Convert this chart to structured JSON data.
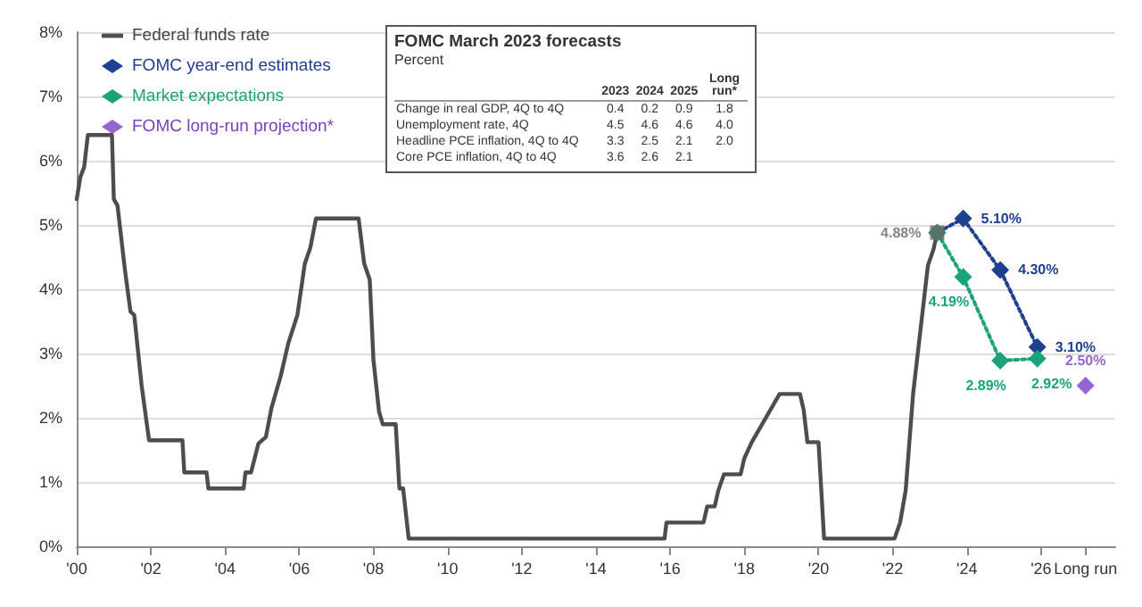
{
  "chart_data": [
    {
      "type": "line",
      "grid": "y",
      "legend": "top left",
      "xlim": [
        2000,
        2028
      ],
      "ylim": [
        0,
        8
      ],
      "xticks": [
        {
          "value": 2000,
          "label": "'00"
        },
        {
          "value": 2002,
          "label": "'02"
        },
        {
          "value": 2004,
          "label": "'04"
        },
        {
          "value": 2006,
          "label": "'06"
        },
        {
          "value": 2008,
          "label": "'08"
        },
        {
          "value": 2010,
          "label": "'10"
        },
        {
          "value": 2012,
          "label": "'12"
        },
        {
          "value": 2014,
          "label": "'14"
        },
        {
          "value": 2016,
          "label": "'16"
        },
        {
          "value": 2018,
          "label": "'18"
        },
        {
          "value": 2020,
          "label": "'20"
        },
        {
          "value": 2022,
          "label": "'22"
        },
        {
          "value": 2024,
          "label": "'24"
        },
        {
          "value": 2026,
          "label": "'26"
        },
        {
          "value": 2027.2,
          "label": "Long run"
        }
      ],
      "yticks": [
        {
          "value": 0,
          "label": "0%"
        },
        {
          "value": 1,
          "label": "1%"
        },
        {
          "value": 2,
          "label": "2%"
        },
        {
          "value": 3,
          "label": "3%"
        },
        {
          "value": 4,
          "label": "4%"
        },
        {
          "value": 5,
          "label": "5%"
        },
        {
          "value": 6,
          "label": "6%"
        },
        {
          "value": 7,
          "label": "7%"
        },
        {
          "value": 8,
          "label": "8%"
        }
      ],
      "series": [
        {
          "name": "Federal funds rate",
          "type": "line",
          "color": "#4d4d4d",
          "marker": "none",
          "line_style": "solid",
          "x": [
            2000,
            2000.1,
            2000.2,
            2000.3,
            2000.95,
            2001,
            2001.1,
            2001.3,
            2001.45,
            2001.55,
            2001.75,
            2001.95,
            2002.85,
            2002.9,
            2003.5,
            2003.55,
            2004.5,
            2004.55,
            2004.7,
            2004.9,
            2005.1,
            2005.25,
            2005.5,
            2005.7,
            2005.95,
            2006.15,
            2006.3,
            2006.45,
            2007.6,
            2007.75,
            2007.9,
            2008,
            2008.15,
            2008.25,
            2008.6,
            2008.7,
            2008.8,
            2008.95,
            2015.85,
            2015.9,
            2016.9,
            2017,
            2017.2,
            2017.3,
            2017.45,
            2017.9,
            2018,
            2018.2,
            2018.45,
            2018.7,
            2018.95,
            2019.5,
            2019.6,
            2019.7,
            2020,
            2020.15,
            2022.05,
            2022.2,
            2022.35,
            2022.45,
            2022.55,
            2022.7,
            2022.85,
            2022.95,
            2023.1,
            2023.2
          ],
          "values": [
            5.4,
            5.75,
            5.9,
            6.4,
            6.4,
            5.4,
            5.3,
            4.3,
            3.65,
            3.6,
            2.5,
            1.65,
            1.65,
            1.15,
            1.15,
            0.9,
            0.9,
            1.15,
            1.15,
            1.6,
            1.7,
            2.15,
            2.65,
            3.15,
            3.6,
            4.4,
            4.65,
            5.1,
            5.1,
            4.4,
            4.15,
            2.9,
            2.1,
            1.9,
            1.9,
            0.9,
            0.9,
            0.12,
            0.12,
            0.37,
            0.37,
            0.62,
            0.62,
            0.87,
            1.12,
            1.12,
            1.37,
            1.62,
            1.87,
            2.12,
            2.37,
            2.37,
            2.12,
            1.62,
            1.62,
            0.12,
            0.12,
            0.37,
            0.87,
            1.62,
            2.37,
            3.12,
            3.87,
            4.37,
            4.62,
            4.88
          ]
        },
        {
          "type": "scatter",
          "color": "#666666",
          "marker": "square",
          "x": [
            2023.2
          ],
          "values": [
            4.88
          ],
          "value_labels": [
            "4.88%"
          ]
        },
        {
          "name": "FOMC year-end estimates",
          "type": "line",
          "color": "#1f3f8f",
          "marker": "diamond",
          "line_style": "dotted",
          "x": [
            2023.2,
            2023.9,
            2024.9,
            2025.9
          ],
          "values": [
            4.88,
            5.1,
            4.3,
            3.1
          ],
          "value_labels": [
            null,
            "5.10%",
            "4.30%",
            "3.10%"
          ]
        },
        {
          "name": "Market expectations",
          "type": "line",
          "color": "#1aa37a",
          "marker": "diamond",
          "line_style": "dotted",
          "x": [
            2023.2,
            2023.9,
            2024.9,
            2025.9
          ],
          "values": [
            4.88,
            4.19,
            2.89,
            2.92
          ],
          "value_labels": [
            null,
            "4.19%",
            "2.89%",
            "2.92%"
          ]
        },
        {
          "name": "FOMC long-run projection*",
          "type": "scatter",
          "color": "#7b3fc4",
          "marker": "diamond",
          "x": [
            2027.2
          ],
          "values": [
            2.5
          ],
          "value_labels": [
            "2.50%"
          ]
        }
      ]
    },
    {
      "type": "other",
      "title": "FOMC March 2023 forecasts",
      "subtitle": "Percent",
      "categories": [
        "2023",
        "2024",
        "2025",
        "Long run*"
      ],
      "y_categories": [
        "Change in real GDP, 4Q to 4Q",
        "Unemployment rate, 4Q",
        "Headline PCE inflation, 4Q to 4Q",
        "Core PCE inflation, 4Q to 4Q"
      ],
      "cell_labels": [
        [
          "0.4",
          "0.2",
          "0.9",
          "1.8"
        ],
        [
          "4.5",
          "4.6",
          "4.6",
          "4.0"
        ],
        [
          "3.3",
          "2.5",
          "2.1",
          "2.0"
        ],
        [
          "3.6",
          "2.6",
          "2.1",
          null
        ]
      ]
    }
  ]
}
